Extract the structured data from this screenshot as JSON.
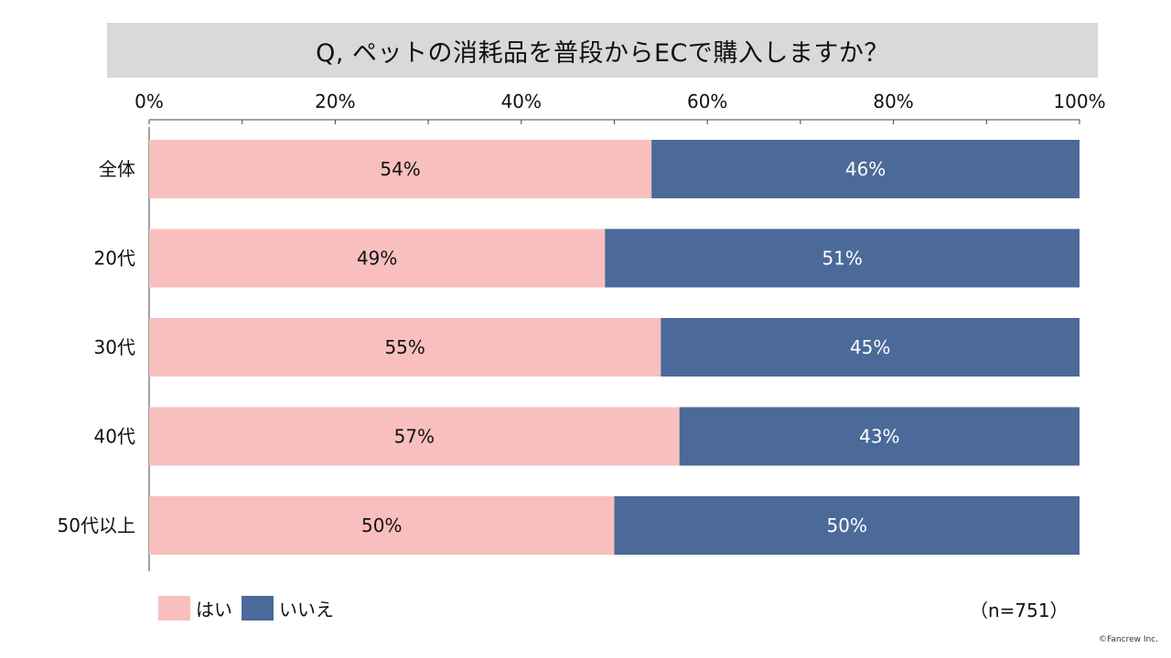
{
  "chart_data": {
    "type": "bar",
    "orientation": "horizontal",
    "stacked": true,
    "title": "Q, ペットの消耗品を普段からECで購入しますか？",
    "categories": [
      "全体",
      "20代",
      "30代",
      "40代",
      "50代以上"
    ],
    "series": [
      {
        "name": "はい",
        "color": "#f9bfbf",
        "values": [
          54,
          49,
          55,
          57,
          50
        ],
        "labels": [
          "54%",
          "49%",
          "55%",
          "57%",
          "50%"
        ]
      },
      {
        "name": "いいえ",
        "color": "#4b6a99",
        "values": [
          46,
          51,
          45,
          43,
          50
        ],
        "labels": [
          "46%",
          "51%",
          "45%",
          "43%",
          "50%"
        ]
      }
    ],
    "xlim": [
      0,
      100
    ],
    "x_ticks": [
      0,
      20,
      40,
      60,
      80,
      100
    ],
    "x_tick_labels": [
      "0%",
      "20%",
      "40%",
      "60%",
      "80%",
      "100%"
    ],
    "x_axis_position": "top",
    "grid": false,
    "legend_position": "bottom-left"
  },
  "sample_note": "（n=751）",
  "copyright": "©Fancrew Inc."
}
